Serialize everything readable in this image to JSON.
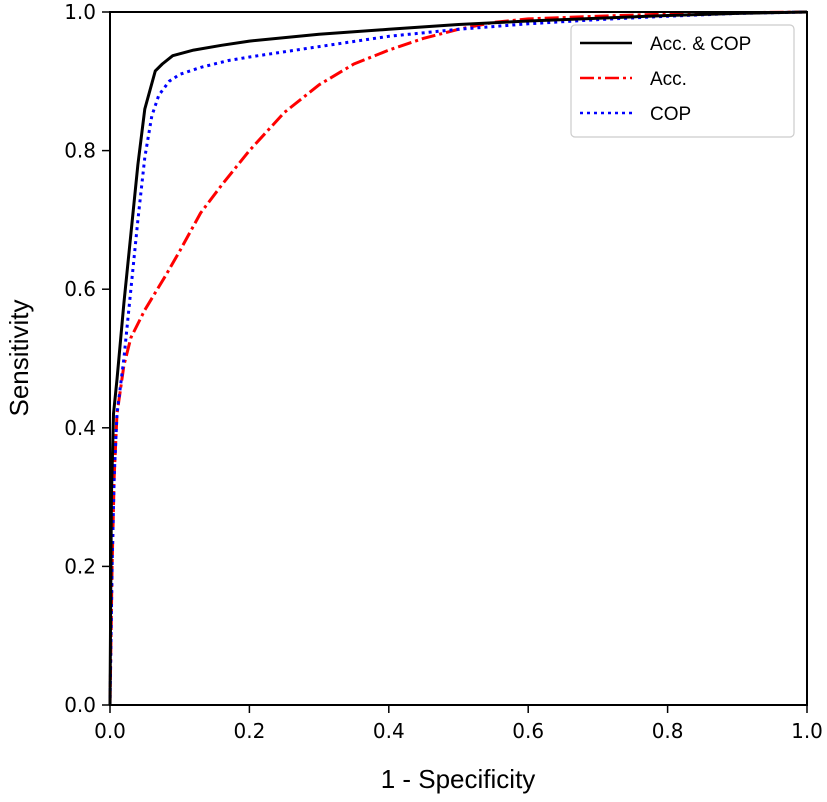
{
  "chart_data": {
    "type": "line",
    "title": "",
    "xlabel": "1 - Specificity",
    "ylabel": "Sensitivity",
    "xlim": [
      0.0,
      1.0
    ],
    "ylim": [
      0.0,
      1.0
    ],
    "xticks": [
      "0.0",
      "0.2",
      "0.4",
      "0.6",
      "0.8",
      "1.0"
    ],
    "yticks": [
      "0.0",
      "0.2",
      "0.4",
      "0.6",
      "0.8",
      "1.0"
    ],
    "grid": false,
    "legend_position": "top-right",
    "series": [
      {
        "name": "Acc. & COP",
        "color": "#000000",
        "style": "solid",
        "x": [
          0.0,
          0.002,
          0.005,
          0.01,
          0.02,
          0.03,
          0.04,
          0.05,
          0.065,
          0.075,
          0.09,
          0.12,
          0.16,
          0.2,
          0.3,
          0.4,
          0.5,
          0.6,
          0.7,
          0.8,
          0.9,
          1.0
        ],
        "y": [
          0.0,
          0.3,
          0.42,
          0.47,
          0.58,
          0.68,
          0.78,
          0.86,
          0.915,
          0.925,
          0.937,
          0.945,
          0.952,
          0.958,
          0.968,
          0.975,
          0.982,
          0.987,
          0.991,
          0.995,
          0.998,
          1.0
        ]
      },
      {
        "name": "Acc.",
        "color": "#ff0000",
        "style": "dashdot",
        "x": [
          0.0,
          0.003,
          0.006,
          0.01,
          0.02,
          0.03,
          0.05,
          0.08,
          0.1,
          0.13,
          0.16,
          0.2,
          0.25,
          0.3,
          0.35,
          0.4,
          0.45,
          0.5,
          0.55,
          0.6,
          0.7,
          0.8,
          0.9,
          1.0
        ],
        "y": [
          0.0,
          0.2,
          0.33,
          0.42,
          0.49,
          0.53,
          0.57,
          0.62,
          0.655,
          0.71,
          0.75,
          0.8,
          0.855,
          0.895,
          0.925,
          0.945,
          0.962,
          0.975,
          0.985,
          0.99,
          0.994,
          0.997,
          0.999,
          1.0
        ]
      },
      {
        "name": "COP",
        "color": "#0000ff",
        "style": "dotted",
        "x": [
          0.0,
          0.003,
          0.006,
          0.01,
          0.02,
          0.03,
          0.04,
          0.05,
          0.06,
          0.07,
          0.085,
          0.1,
          0.13,
          0.17,
          0.2,
          0.3,
          0.4,
          0.5,
          0.6,
          0.7,
          0.8,
          0.9,
          1.0
        ],
        "y": [
          0.0,
          0.2,
          0.33,
          0.42,
          0.5,
          0.6,
          0.7,
          0.79,
          0.85,
          0.88,
          0.9,
          0.91,
          0.92,
          0.93,
          0.935,
          0.95,
          0.965,
          0.975,
          0.983,
          0.989,
          0.994,
          0.998,
          1.0
        ]
      }
    ]
  }
}
